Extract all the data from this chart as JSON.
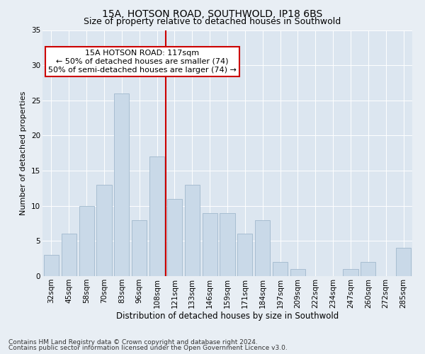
{
  "title1": "15A, HOTSON ROAD, SOUTHWOLD, IP18 6BS",
  "title2": "Size of property relative to detached houses in Southwold",
  "xlabel": "Distribution of detached houses by size in Southwold",
  "ylabel": "Number of detached properties",
  "categories": [
    "32sqm",
    "45sqm",
    "58sqm",
    "70sqm",
    "83sqm",
    "96sqm",
    "108sqm",
    "121sqm",
    "133sqm",
    "146sqm",
    "159sqm",
    "171sqm",
    "184sqm",
    "197sqm",
    "209sqm",
    "222sqm",
    "234sqm",
    "247sqm",
    "260sqm",
    "272sqm",
    "285sqm"
  ],
  "values": [
    3,
    6,
    10,
    13,
    26,
    8,
    17,
    11,
    13,
    9,
    9,
    6,
    8,
    2,
    1,
    0,
    0,
    1,
    2,
    0,
    4
  ],
  "bar_color": "#c9d9e8",
  "bar_edge_color": "#a0b8cc",
  "vline_x_idx": 7,
  "vline_color": "#cc0000",
  "annotation_text": "15A HOTSON ROAD: 117sqm\n← 50% of detached houses are smaller (74)\n50% of semi-detached houses are larger (74) →",
  "annotation_box_color": "#ffffff",
  "annotation_box_edge_color": "#cc0000",
  "ylim": [
    0,
    35
  ],
  "yticks": [
    0,
    5,
    10,
    15,
    20,
    25,
    30,
    35
  ],
  "bg_color": "#e8eef4",
  "plot_bg_color": "#dce6f0",
  "footer_line1": "Contains HM Land Registry data © Crown copyright and database right 2024.",
  "footer_line2": "Contains public sector information licensed under the Open Government Licence v3.0.",
  "title1_fontsize": 10,
  "title2_fontsize": 9,
  "xlabel_fontsize": 8.5,
  "ylabel_fontsize": 8,
  "tick_fontsize": 7.5,
  "annot_fontsize": 8,
  "footer_fontsize": 6.5
}
